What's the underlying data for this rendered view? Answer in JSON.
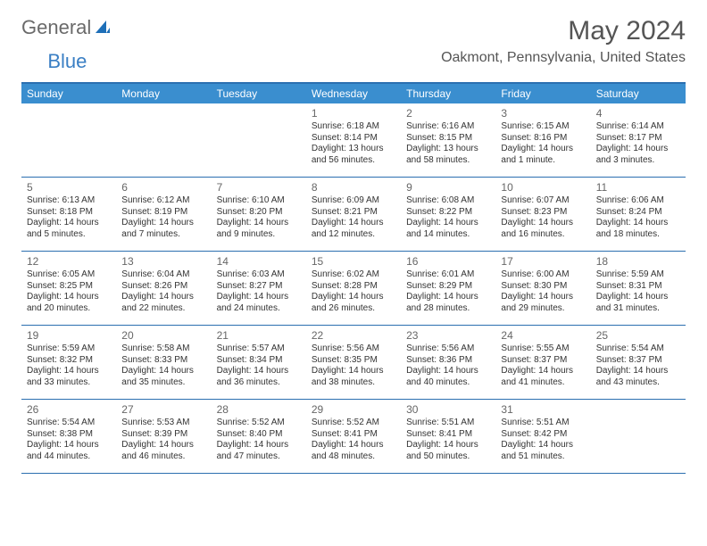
{
  "logo": {
    "text1": "General",
    "text2": "Blue"
  },
  "title": "May 2024",
  "location": "Oakmont, Pennsylvania, United States",
  "colors": {
    "header_bg": "#3a8ecf",
    "header_text": "#ffffff",
    "rule": "#2b6fb0",
    "daynum": "#666666",
    "body_text": "#333333",
    "logo_gray": "#6a6a6a",
    "logo_blue": "#3a7fc4"
  },
  "day_headers": [
    "Sunday",
    "Monday",
    "Tuesday",
    "Wednesday",
    "Thursday",
    "Friday",
    "Saturday"
  ],
  "weeks": [
    [
      null,
      null,
      null,
      {
        "n": "1",
        "sr": "6:18 AM",
        "ss": "8:14 PM",
        "dl": "13 hours and 56 minutes."
      },
      {
        "n": "2",
        "sr": "6:16 AM",
        "ss": "8:15 PM",
        "dl": "13 hours and 58 minutes."
      },
      {
        "n": "3",
        "sr": "6:15 AM",
        "ss": "8:16 PM",
        "dl": "14 hours and 1 minute."
      },
      {
        "n": "4",
        "sr": "6:14 AM",
        "ss": "8:17 PM",
        "dl": "14 hours and 3 minutes."
      }
    ],
    [
      {
        "n": "5",
        "sr": "6:13 AM",
        "ss": "8:18 PM",
        "dl": "14 hours and 5 minutes."
      },
      {
        "n": "6",
        "sr": "6:12 AM",
        "ss": "8:19 PM",
        "dl": "14 hours and 7 minutes."
      },
      {
        "n": "7",
        "sr": "6:10 AM",
        "ss": "8:20 PM",
        "dl": "14 hours and 9 minutes."
      },
      {
        "n": "8",
        "sr": "6:09 AM",
        "ss": "8:21 PM",
        "dl": "14 hours and 12 minutes."
      },
      {
        "n": "9",
        "sr": "6:08 AM",
        "ss": "8:22 PM",
        "dl": "14 hours and 14 minutes."
      },
      {
        "n": "10",
        "sr": "6:07 AM",
        "ss": "8:23 PM",
        "dl": "14 hours and 16 minutes."
      },
      {
        "n": "11",
        "sr": "6:06 AM",
        "ss": "8:24 PM",
        "dl": "14 hours and 18 minutes."
      }
    ],
    [
      {
        "n": "12",
        "sr": "6:05 AM",
        "ss": "8:25 PM",
        "dl": "14 hours and 20 minutes."
      },
      {
        "n": "13",
        "sr": "6:04 AM",
        "ss": "8:26 PM",
        "dl": "14 hours and 22 minutes."
      },
      {
        "n": "14",
        "sr": "6:03 AM",
        "ss": "8:27 PM",
        "dl": "14 hours and 24 minutes."
      },
      {
        "n": "15",
        "sr": "6:02 AM",
        "ss": "8:28 PM",
        "dl": "14 hours and 26 minutes."
      },
      {
        "n": "16",
        "sr": "6:01 AM",
        "ss": "8:29 PM",
        "dl": "14 hours and 28 minutes."
      },
      {
        "n": "17",
        "sr": "6:00 AM",
        "ss": "8:30 PM",
        "dl": "14 hours and 29 minutes."
      },
      {
        "n": "18",
        "sr": "5:59 AM",
        "ss": "8:31 PM",
        "dl": "14 hours and 31 minutes."
      }
    ],
    [
      {
        "n": "19",
        "sr": "5:59 AM",
        "ss": "8:32 PM",
        "dl": "14 hours and 33 minutes."
      },
      {
        "n": "20",
        "sr": "5:58 AM",
        "ss": "8:33 PM",
        "dl": "14 hours and 35 minutes."
      },
      {
        "n": "21",
        "sr": "5:57 AM",
        "ss": "8:34 PM",
        "dl": "14 hours and 36 minutes."
      },
      {
        "n": "22",
        "sr": "5:56 AM",
        "ss": "8:35 PM",
        "dl": "14 hours and 38 minutes."
      },
      {
        "n": "23",
        "sr": "5:56 AM",
        "ss": "8:36 PM",
        "dl": "14 hours and 40 minutes."
      },
      {
        "n": "24",
        "sr": "5:55 AM",
        "ss": "8:37 PM",
        "dl": "14 hours and 41 minutes."
      },
      {
        "n": "25",
        "sr": "5:54 AM",
        "ss": "8:37 PM",
        "dl": "14 hours and 43 minutes."
      }
    ],
    [
      {
        "n": "26",
        "sr": "5:54 AM",
        "ss": "8:38 PM",
        "dl": "14 hours and 44 minutes."
      },
      {
        "n": "27",
        "sr": "5:53 AM",
        "ss": "8:39 PM",
        "dl": "14 hours and 46 minutes."
      },
      {
        "n": "28",
        "sr": "5:52 AM",
        "ss": "8:40 PM",
        "dl": "14 hours and 47 minutes."
      },
      {
        "n": "29",
        "sr": "5:52 AM",
        "ss": "8:41 PM",
        "dl": "14 hours and 48 minutes."
      },
      {
        "n": "30",
        "sr": "5:51 AM",
        "ss": "8:41 PM",
        "dl": "14 hours and 50 minutes."
      },
      {
        "n": "31",
        "sr": "5:51 AM",
        "ss": "8:42 PM",
        "dl": "14 hours and 51 minutes."
      },
      null
    ]
  ],
  "labels": {
    "sunrise": "Sunrise:",
    "sunset": "Sunset:",
    "daylight": "Daylight:"
  }
}
